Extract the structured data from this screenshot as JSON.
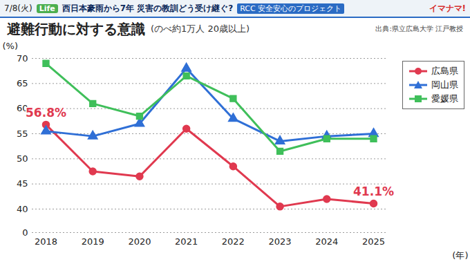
{
  "header": {
    "date": "7/8(火)",
    "badge": "Life",
    "headline": "西日本豪雨から7年 災害の教訓どう受け継ぐ?",
    "project": "RCC 安全安心のプロジェクト",
    "program": "イマナマ!"
  },
  "chart_data": {
    "type": "line",
    "title": "避難行動に対する意識",
    "subtitle": "(のべ約1万人 20歳以上)",
    "source": "出典:県立広島大学 江戸教授",
    "x": [
      2018,
      2019,
      2020,
      2021,
      2022,
      2023,
      2024,
      2025
    ],
    "xlim": [
      2018,
      2025
    ],
    "xticks": [
      2018,
      2019,
      2020,
      2021,
      2022,
      2023,
      2024,
      2025
    ],
    "x_label": "(年)",
    "ylim": [
      0,
      70
    ],
    "yticks": [
      0,
      40,
      45,
      50,
      55,
      60,
      65,
      70
    ],
    "y_label": "(%)",
    "grid": true,
    "legend": "right",
    "series": [
      {
        "name": "広島県",
        "color": "#e0394f",
        "marker": "circle",
        "values": [
          56.8,
          47.5,
          46.5,
          56,
          48.5,
          40.5,
          42,
          41.1
        ]
      },
      {
        "name": "岡山県",
        "color": "#2f6fd6",
        "marker": "triangle",
        "values": [
          55.5,
          54.5,
          57,
          68,
          58,
          53.5,
          54.5,
          55
        ]
      },
      {
        "name": "愛媛県",
        "color": "#3fbf5a",
        "marker": "square",
        "values": [
          69,
          61,
          58.5,
          66.5,
          62,
          51.5,
          54,
          54
        ]
      }
    ],
    "annotations": [
      {
        "text": "56.8%",
        "x": 2018,
        "y": 56.8,
        "series": "広島県"
      },
      {
        "text": "41.1%",
        "x": 2025,
        "y": 41.1,
        "series": "広島県"
      }
    ]
  }
}
